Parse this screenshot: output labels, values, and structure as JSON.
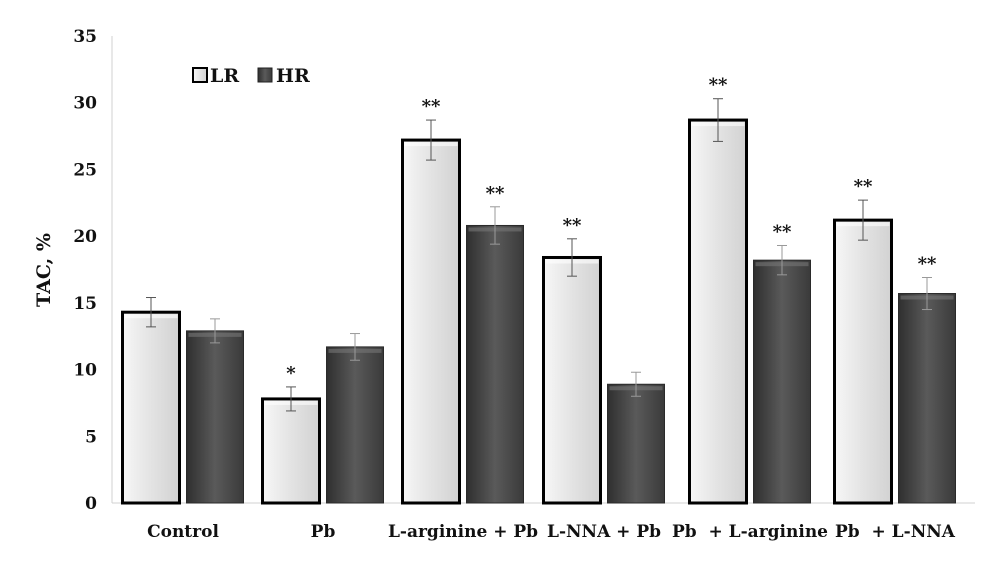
{
  "chart_data": {
    "type": "bar",
    "title": "",
    "xlabel": "",
    "ylabel": "TAC, %",
    "ylim": [
      0,
      35
    ],
    "yticks": [
      "0",
      "5",
      "10",
      "15",
      "20",
      "25",
      "30",
      "35"
    ],
    "categories": [
      "Control",
      "Pb",
      "L-arginine + Pb",
      "L-NNA + Pb",
      "Pb  + L-arginine",
      "Pb  + L-NNA"
    ],
    "legend_position": "top-left",
    "grid": false,
    "series": [
      {
        "name": "LR",
        "color": "#e6e6e6",
        "values": [
          14.3,
          7.8,
          27.2,
          18.4,
          28.7,
          21.2
        ],
        "errors": [
          1.1,
          0.9,
          1.5,
          1.4,
          1.6,
          1.5
        ],
        "significance": [
          "",
          "*",
          "**",
          "**",
          "**",
          "**"
        ]
      },
      {
        "name": "HR",
        "color": "#555555",
        "values": [
          12.9,
          11.7,
          20.8,
          8.9,
          18.2,
          15.7
        ],
        "errors": [
          0.9,
          1.0,
          1.4,
          0.9,
          1.1,
          1.2
        ],
        "significance": [
          "",
          "",
          "**",
          "",
          "**",
          "**"
        ]
      }
    ]
  }
}
